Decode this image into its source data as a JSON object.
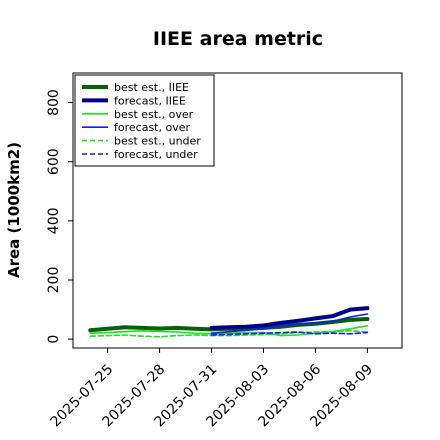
{
  "chart_data": {
    "type": "line",
    "title": "IIEE area metric",
    "ylabel": "Area (1000km2)",
    "xlabel": "",
    "ylim": [
      -30,
      900
    ],
    "yticks": [
      0,
      200,
      400,
      600,
      800
    ],
    "x_start": "2025-07-23",
    "xticks": [
      "2025-07-25",
      "2025-07-28",
      "2025-07-31",
      "2025-08-03",
      "2025-08-06",
      "2025-08-09"
    ],
    "highlight_tick": "2025-07-31",
    "highlight_color": "#1a8a1a",
    "x": [
      "2025-07-24",
      "2025-07-25",
      "2025-07-26",
      "2025-07-27",
      "2025-07-28",
      "2025-07-29",
      "2025-07-30",
      "2025-07-31",
      "2025-08-01",
      "2025-08-02",
      "2025-08-03",
      "2025-08-04",
      "2025-08-05",
      "2025-08-06",
      "2025-08-07",
      "2025-08-08",
      "2025-08-09"
    ],
    "legend_position": "upper-left",
    "grid": false,
    "series": [
      {
        "name": "best est., IIEE",
        "color": "#006400",
        "width": 4,
        "dash": "",
        "values": [
          30,
          35,
          40,
          38,
          36,
          38,
          35,
          33,
          35,
          35,
          38,
          42,
          48,
          52,
          58,
          65,
          68
        ]
      },
      {
        "name": "forecast, IIEE",
        "color": "#00008b",
        "width": 4,
        "dash": "",
        "values": [
          null,
          null,
          null,
          null,
          null,
          null,
          null,
          38,
          40,
          42,
          46,
          55,
          62,
          70,
          78,
          100,
          105
        ]
      },
      {
        "name": "best est., over",
        "color": "#22dd22",
        "width": 1.6,
        "dash": "",
        "values": [
          20,
          22,
          25,
          28,
          26,
          24,
          20,
          18,
          20,
          22,
          22,
          12,
          14,
          20,
          25,
          35,
          45
        ]
      },
      {
        "name": "forecast, over",
        "color": "#1a1aee",
        "width": 1.6,
        "dash": "",
        "values": [
          null,
          null,
          null,
          null,
          null,
          null,
          null,
          20,
          25,
          30,
          35,
          45,
          50,
          55,
          60,
          75,
          85
        ]
      },
      {
        "name": "best est., under",
        "color": "#22dd22",
        "width": 1.6,
        "dash": "5,3",
        "values": [
          10,
          12,
          14,
          10,
          8,
          12,
          14,
          12,
          12,
          14,
          15,
          18,
          22,
          24,
          26,
          28,
          24
        ]
      },
      {
        "name": "forecast, under",
        "color": "#1a1aee",
        "width": 1.6,
        "dash": "5,3",
        "values": [
          null,
          null,
          null,
          null,
          null,
          null,
          null,
          14,
          16,
          18,
          20,
          22,
          24,
          18,
          20,
          18,
          22
        ]
      }
    ]
  }
}
